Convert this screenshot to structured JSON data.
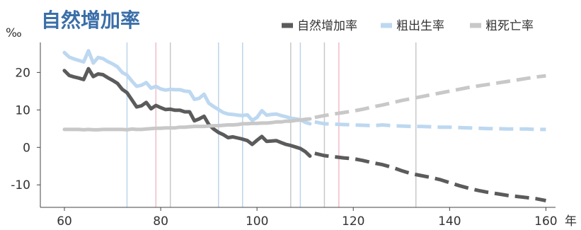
{
  "chart_data": {
    "type": "line",
    "title": "自然增加率",
    "ylabel": "‰",
    "xlabel": "年",
    "xlim": [
      55,
      162
    ],
    "ylim": [
      -16,
      28
    ],
    "x_ticks": [
      "60",
      "80",
      "100",
      "120",
      "140",
      "160"
    ],
    "y_ticks": [
      "-10",
      "0",
      "10",
      "20"
    ],
    "legend_position": "top-right",
    "vlines": [
      {
        "x": 73,
        "color": "#bcd4ea"
      },
      {
        "x": 79,
        "color": "#f1bcc8"
      },
      {
        "x": 82,
        "color": "#c8c8c8"
      },
      {
        "x": 92,
        "color": "#bcd4ea"
      },
      {
        "x": 97,
        "color": "#bcd4ea"
      },
      {
        "x": 107,
        "color": "#c8c8c8"
      },
      {
        "x": 109,
        "color": "#bcd4ea"
      },
      {
        "x": 114,
        "color": "#c8c8c8"
      },
      {
        "x": 117,
        "color": "#f1bcc8"
      },
      {
        "x": 133,
        "color": "#c8c8c8"
      }
    ],
    "series": [
      {
        "name": "自然增加率",
        "color": "#5b5b5b",
        "actual": {
          "x": [
            60,
            61,
            62,
            63,
            64,
            65,
            66,
            67,
            68,
            69,
            70,
            71,
            72,
            73,
            74,
            75,
            76,
            77,
            78,
            79,
            80,
            81,
            82,
            83,
            84,
            85,
            86,
            87,
            88,
            89,
            90,
            91,
            92,
            93,
            94,
            95,
            96,
            97,
            98,
            99,
            100,
            101,
            102,
            103,
            104,
            105,
            106,
            107,
            108,
            109,
            110,
            111
          ],
          "y": [
            20.5,
            19.2,
            18.8,
            18.5,
            18.1,
            21.0,
            18.9,
            19.6,
            19.4,
            18.6,
            17.9,
            17.1,
            15.5,
            14.6,
            12.7,
            10.8,
            11.1,
            12.0,
            10.3,
            11.2,
            10.6,
            10.1,
            10.2,
            9.9,
            9.9,
            9.5,
            9.5,
            7.1,
            7.6,
            8.3,
            6.1,
            4.9,
            4.0,
            3.4,
            2.6,
            2.8,
            2.5,
            2.2,
            1.8,
            0.8,
            1.9,
            2.9,
            1.6,
            1.7,
            1.8,
            1.3,
            0.8,
            0.5,
            0.1,
            -0.3,
            -1.1,
            -2.3
          ]
        },
        "projection": {
          "x": [
            112,
            114,
            116,
            118,
            120,
            122,
            124,
            126,
            128,
            130,
            132,
            134,
            136,
            138,
            140,
            142,
            144,
            146,
            148,
            150,
            152,
            154,
            156,
            158,
            160
          ],
          "y": [
            -1.6,
            -2.2,
            -2.5,
            -2.8,
            -3.0,
            -3.5,
            -4.1,
            -4.6,
            -5.3,
            -6.2,
            -7.0,
            -7.5,
            -8.0,
            -8.6,
            -9.4,
            -10.2,
            -10.9,
            -11.5,
            -12.0,
            -12.4,
            -12.8,
            -13.1,
            -13.4,
            -13.7,
            -14.2
          ]
        }
      },
      {
        "name": "粗出生率",
        "color": "#bdd8f0",
        "actual": {
          "x": [
            60,
            61,
            62,
            63,
            64,
            65,
            66,
            67,
            68,
            69,
            70,
            71,
            72,
            73,
            74,
            75,
            76,
            77,
            78,
            79,
            80,
            81,
            82,
            83,
            84,
            85,
            86,
            87,
            88,
            89,
            90,
            91,
            92,
            93,
            94,
            95,
            96,
            97,
            98,
            99,
            100,
            101,
            102,
            103,
            104,
            105,
            106,
            107,
            108,
            109,
            110,
            111
          ],
          "y": [
            25.3,
            24.1,
            23.6,
            23.2,
            22.8,
            25.8,
            22.5,
            24.0,
            23.7,
            22.9,
            22.3,
            21.5,
            20.0,
            19.3,
            17.7,
            16.3,
            16.6,
            17.3,
            15.8,
            16.3,
            15.6,
            15.3,
            15.5,
            15.4,
            15.4,
            15.0,
            14.9,
            12.8,
            13.1,
            14.2,
            11.8,
            10.9,
            10.1,
            9.3,
            8.9,
            8.8,
            8.6,
            8.5,
            8.7,
            7.2,
            8.0,
            9.8,
            8.6,
            8.8,
            8.9,
            8.5,
            8.2,
            7.8,
            7.6,
            7.4,
            6.7,
            6.3
          ]
        },
        "projection": {
          "x": [
            112,
            114,
            116,
            118,
            120,
            122,
            124,
            126,
            128,
            130,
            132,
            134,
            136,
            138,
            140,
            142,
            144,
            146,
            148,
            150,
            152,
            154,
            156,
            158,
            160
          ],
          "y": [
            6.8,
            6.3,
            6.2,
            6.1,
            6.0,
            5.9,
            5.8,
            6.0,
            5.8,
            5.7,
            5.6,
            5.6,
            5.5,
            5.4,
            5.4,
            5.3,
            5.2,
            5.1,
            5.0,
            5.0,
            4.9,
            4.9,
            4.9,
            4.8,
            4.8
          ]
        }
      },
      {
        "name": "粗死亡率",
        "color": "#c8c8c8",
        "actual": {
          "x": [
            60,
            61,
            62,
            63,
            64,
            65,
            66,
            67,
            68,
            69,
            70,
            71,
            72,
            73,
            74,
            75,
            76,
            77,
            78,
            79,
            80,
            81,
            82,
            83,
            84,
            85,
            86,
            87,
            88,
            89,
            90,
            91,
            92,
            93,
            94,
            95,
            96,
            97,
            98,
            99,
            100,
            101,
            102,
            103,
            104,
            105,
            106,
            107,
            108,
            109,
            110,
            111
          ],
          "y": [
            4.8,
            4.8,
            4.8,
            4.8,
            4.7,
            4.8,
            4.7,
            4.7,
            4.8,
            4.8,
            4.8,
            4.8,
            4.8,
            4.7,
            4.9,
            4.8,
            4.8,
            4.9,
            5.0,
            5.1,
            5.1,
            5.2,
            5.2,
            5.2,
            5.4,
            5.4,
            5.5,
            5.6,
            5.6,
            5.6,
            5.7,
            5.8,
            5.8,
            5.9,
            6.0,
            6.0,
            6.1,
            6.3,
            6.3,
            6.4,
            6.4,
            6.5,
            6.5,
            6.6,
            6.8,
            6.8,
            7.0,
            7.0,
            7.2,
            7.3,
            7.5,
            7.6
          ]
        },
        "projection": {
          "x": [
            112,
            114,
            116,
            118,
            120,
            122,
            124,
            126,
            128,
            130,
            132,
            134,
            136,
            138,
            140,
            142,
            144,
            146,
            148,
            150,
            152,
            154,
            156,
            158,
            160
          ],
          "y": [
            8.0,
            8.5,
            8.9,
            9.3,
            9.7,
            10.2,
            10.8,
            11.3,
            11.9,
            12.5,
            13.0,
            13.5,
            14.0,
            14.5,
            15.0,
            15.5,
            16.0,
            16.4,
            16.8,
            17.2,
            17.6,
            18.0,
            18.4,
            18.8,
            19.1
          ]
        }
      }
    ]
  }
}
